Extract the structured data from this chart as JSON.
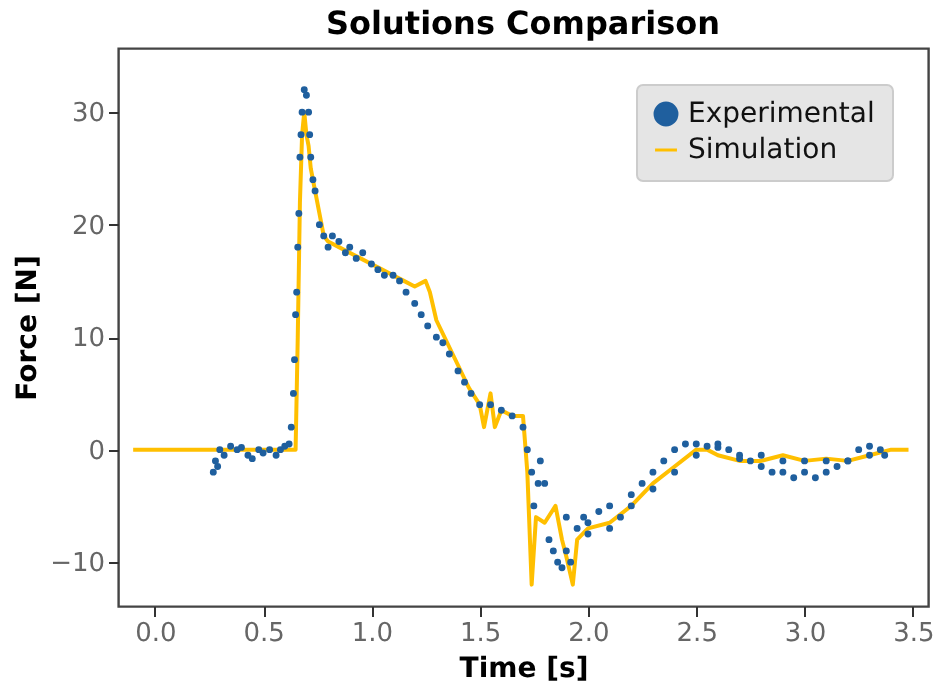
{
  "chart_data": {
    "type": "line",
    "title": "Solutions Comparison",
    "xlabel": "Time [s]",
    "ylabel": "Force [N]",
    "xlim": [
      -0.17,
      3.57
    ],
    "ylim": [
      -13.9,
      35.7
    ],
    "xticks": [
      {
        "value": 0,
        "label": "0.0"
      },
      0.5,
      {
        "value": 1,
        "label": "1.0"
      },
      1.5,
      {
        "value": 2,
        "label": "2.0"
      },
      2.5,
      {
        "value": 3,
        "label": "3.0"
      },
      3.5
    ],
    "yticks": [
      {
        "value": -10,
        "label": "−10"
      },
      0,
      10,
      20,
      30
    ],
    "grid": false,
    "legend": "top right",
    "series": [
      {
        "name": "Experimental",
        "type": "scatter",
        "marker": "circle",
        "color": "#1f5f9e",
        "x": [
          0.27,
          0.28,
          0.29,
          0.3,
          0.32,
          0.35,
          0.38,
          0.4,
          0.43,
          0.45,
          0.48,
          0.5,
          0.53,
          0.56,
          0.58,
          0.6,
          0.62,
          0.63,
          0.64,
          0.645,
          0.65,
          0.655,
          0.66,
          0.665,
          0.67,
          0.675,
          0.68,
          0.69,
          0.7,
          0.71,
          0.715,
          0.72,
          0.73,
          0.74,
          0.76,
          0.78,
          0.8,
          0.82,
          0.85,
          0.88,
          0.9,
          0.93,
          0.96,
          1.0,
          1.03,
          1.06,
          1.1,
          1.13,
          1.16,
          1.2,
          1.23,
          1.26,
          1.3,
          1.33,
          1.36,
          1.4,
          1.43,
          1.46,
          1.5,
          1.55,
          1.6,
          1.65,
          1.7,
          1.72,
          1.74,
          1.75,
          1.77,
          1.78,
          1.8,
          1.82,
          1.84,
          1.86,
          1.88,
          1.9,
          1.92,
          1.95,
          1.98,
          2.0,
          2.05,
          2.1,
          2.15,
          2.2,
          2.25,
          2.3,
          2.35,
          2.4,
          2.45,
          2.5,
          2.55,
          2.6,
          2.65,
          2.7,
          2.75,
          2.8,
          2.85,
          2.9,
          2.95,
          3.0,
          3.05,
          3.1,
          3.15,
          3.2,
          3.25,
          3.3,
          3.35,
          3.37,
          1.9,
          2.0,
          2.1,
          2.2,
          2.3,
          2.4,
          2.5,
          2.6,
          2.7,
          2.8,
          2.9,
          3.0,
          3.1,
          3.2,
          3.3
        ],
        "values": [
          -2,
          -1,
          -1.5,
          0,
          -0.5,
          0.3,
          0,
          0.2,
          -0.5,
          -0.8,
          0,
          -0.3,
          0,
          -0.5,
          0,
          0.3,
          0.5,
          2,
          5,
          8,
          12,
          14,
          18,
          21,
          26,
          28,
          30,
          32,
          31.5,
          30,
          28,
          26,
          24,
          23,
          20,
          19,
          18,
          19,
          18.5,
          17.5,
          18,
          17,
          17.5,
          16.5,
          16,
          15.5,
          15.5,
          15,
          14,
          13,
          12,
          11,
          10,
          9.5,
          8.5,
          7,
          6,
          5,
          4,
          4,
          3.5,
          3,
          2,
          0,
          -2,
          -5,
          -3,
          -1,
          -3,
          -8,
          -9,
          -10,
          -10.5,
          -9,
          -10,
          -7,
          -6,
          -7.5,
          -5.5,
          -5,
          -6,
          -4,
          -3,
          -2,
          -1,
          0,
          0.5,
          0.5,
          0.3,
          0.5,
          0,
          -0.5,
          -1,
          -1.5,
          -2,
          -2,
          -2.5,
          -2,
          -2.5,
          -2,
          -1.5,
          -1,
          0,
          0.3,
          0,
          -0.5,
          -6,
          -6.5,
          -7,
          -5,
          -3.5,
          -2,
          -0.5,
          0.2,
          -0.8,
          -0.5,
          -1,
          -1,
          -1,
          -1,
          -0.5
        ]
      },
      {
        "name": "Simulation",
        "type": "line",
        "color": "#ffbf00",
        "x": [
          -0.1,
          0.64,
          0.65,
          0.66,
          0.67,
          0.68,
          0.69,
          0.7,
          0.71,
          0.72,
          0.74,
          0.76,
          0.78,
          0.8,
          0.85,
          0.9,
          0.95,
          1.0,
          1.05,
          1.1,
          1.15,
          1.2,
          1.25,
          1.27,
          1.3,
          1.35,
          1.4,
          1.45,
          1.5,
          1.52,
          1.55,
          1.57,
          1.6,
          1.65,
          1.7,
          1.72,
          1.74,
          1.76,
          1.8,
          1.85,
          1.88,
          1.9,
          1.93,
          1.95,
          2.0,
          2.1,
          2.2,
          2.3,
          2.4,
          2.5,
          2.55,
          2.6,
          2.7,
          2.8,
          2.9,
          3.0,
          3.1,
          3.2,
          3.3,
          3.4,
          3.48
        ],
        "values": [
          0,
          0,
          0,
          10,
          22,
          28,
          30,
          28,
          27,
          25,
          23,
          21,
          19,
          18.5,
          18,
          17.5,
          17,
          16.5,
          16,
          15.5,
          15,
          14.5,
          15,
          14,
          11.5,
          9.5,
          7.5,
          5.5,
          4,
          2,
          5,
          2,
          3.5,
          3,
          3,
          -2,
          -12,
          -6,
          -6.5,
          -5,
          -8,
          -9.5,
          -12,
          -8,
          -7,
          -6.5,
          -5,
          -3,
          -1.5,
          0,
          0,
          -0.5,
          -1,
          -1,
          -0.5,
          -1,
          -0.8,
          -1,
          -0.5,
          0,
          0
        ]
      }
    ]
  }
}
